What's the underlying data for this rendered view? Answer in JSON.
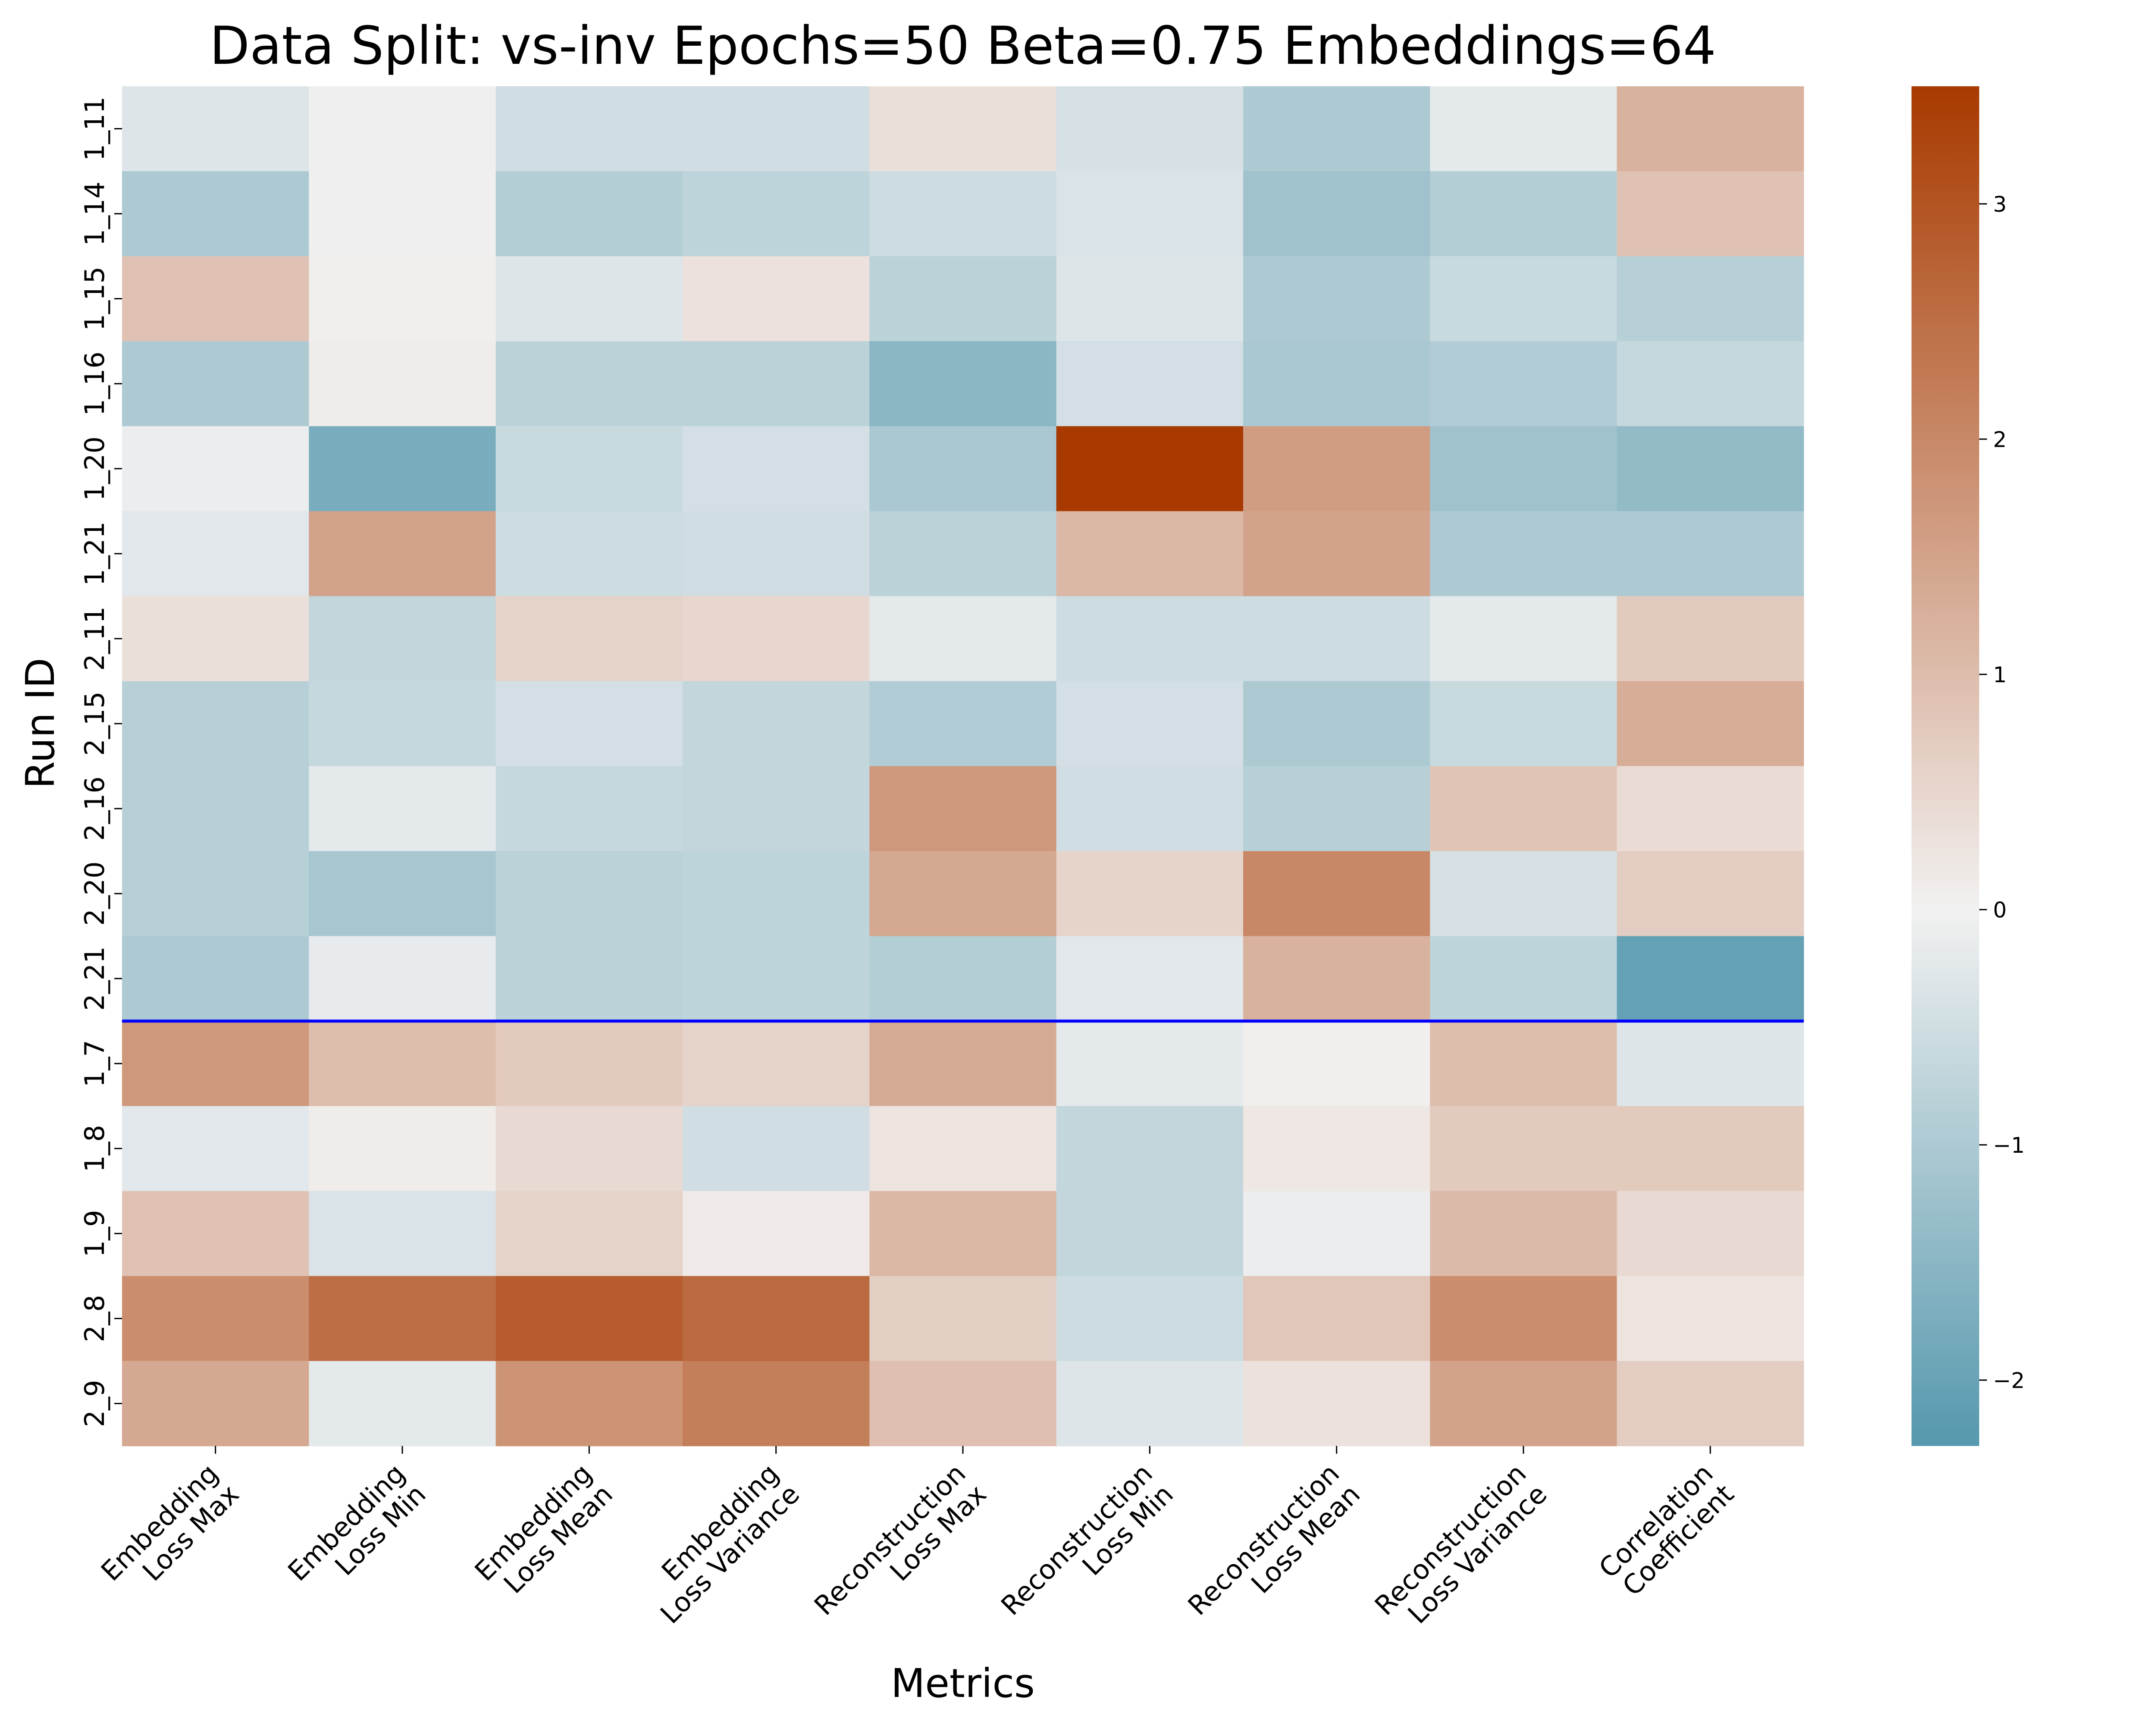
{
  "chart_data": {
    "type": "heatmap",
    "title": "Data Split: vs-inv Epochs=50 Beta=0.75 Embeddings=64",
    "xlabel": "Metrics",
    "ylabel": "Run ID",
    "columns": [
      [
        "Embedding",
        "Loss Max"
      ],
      [
        "Embedding",
        "Loss Min"
      ],
      [
        "Embedding",
        "Loss Mean"
      ],
      [
        "Embedding",
        "Loss Variance"
      ],
      [
        "Reconstruction",
        "Loss Max"
      ],
      [
        "Reconstruction",
        "Loss Min"
      ],
      [
        "Reconstruction",
        "Loss Mean"
      ],
      [
        "Reconstruction",
        "Loss Variance"
      ],
      [
        "Correlation",
        "Coefficient"
      ]
    ],
    "rows": [
      "1_11",
      "1_14",
      "1_15",
      "1_16",
      "1_20",
      "1_21",
      "2_11",
      "2_15",
      "2_16",
      "2_20",
      "2_21",
      "1_7",
      "1_8",
      "1_9",
      "2_8",
      "2_9"
    ],
    "values": [
      [
        -0.3,
        -0.05,
        -0.5,
        -0.5,
        0.35,
        -0.4,
        -1.0,
        -0.2,
        1.2
      ],
      [
        -1.0,
        -0.05,
        -0.9,
        -0.75,
        -0.55,
        -0.35,
        -1.2,
        -0.9,
        0.9
      ],
      [
        0.9,
        0.05,
        -0.3,
        0.3,
        -0.8,
        -0.3,
        -1.0,
        -0.6,
        -0.85
      ],
      [
        -1.0,
        0.1,
        -0.8,
        -0.8,
        -1.5,
        -0.45,
        -1.05,
        -0.95,
        -0.65
      ],
      [
        -0.1,
        -1.75,
        -0.6,
        -0.45,
        -1.05,
        3.5,
        1.6,
        -1.2,
        -1.4
      ],
      [
        -0.25,
        1.5,
        -0.55,
        -0.5,
        -0.8,
        1.1,
        1.5,
        -1.0,
        -1.0
      ],
      [
        0.35,
        -0.7,
        0.6,
        0.5,
        -0.2,
        -0.55,
        -0.55,
        -0.2,
        0.75
      ],
      [
        -0.85,
        -0.65,
        -0.45,
        -0.7,
        -0.95,
        -0.45,
        -1.0,
        -0.6,
        1.3
      ],
      [
        -0.85,
        -0.2,
        -0.65,
        -0.7,
        1.7,
        -0.5,
        -0.85,
        0.85,
        0.4
      ],
      [
        -0.85,
        -1.1,
        -0.8,
        -0.75,
        1.4,
        0.55,
        2.0,
        -0.4,
        0.7
      ],
      [
        -1.0,
        -0.15,
        -0.8,
        -0.75,
        -0.9,
        -0.25,
        1.2,
        -0.75,
        -2.05
      ],
      [
        1.7,
        1.0,
        0.75,
        0.6,
        1.35,
        -0.2,
        0.05,
        1.0,
        -0.3
      ],
      [
        -0.25,
        0.1,
        0.45,
        -0.5,
        0.25,
        -0.7,
        0.2,
        0.75,
        0.75
      ],
      [
        0.9,
        -0.35,
        0.6,
        0.15,
        1.1,
        -0.7,
        -0.1,
        1.05,
        0.45
      ],
      [
        1.9,
        2.5,
        2.85,
        2.6,
        0.65,
        -0.55,
        0.8,
        1.9,
        0.25
      ],
      [
        1.4,
        -0.2,
        1.8,
        2.2,
        0.95,
        -0.3,
        0.3,
        1.5,
        0.7
      ]
    ],
    "separator_after_row": "2_21",
    "separator_color": "#0000ff",
    "colorbar": {
      "min": -2.28,
      "max": 3.5,
      "ticks": [
        {
          "value": -2,
          "label": "−2"
        },
        {
          "value": -1,
          "label": "−1"
        },
        {
          "value": 0,
          "label": "0"
        },
        {
          "value": 1,
          "label": "1"
        },
        {
          "value": 2,
          "label": "2"
        },
        {
          "value": 3,
          "label": "3"
        }
      ],
      "color_low": "#5598ad",
      "color_mid": "#f2f1f1",
      "color_high": "#a83a00"
    },
    "grid": false,
    "legend": "colorbar-right"
  }
}
